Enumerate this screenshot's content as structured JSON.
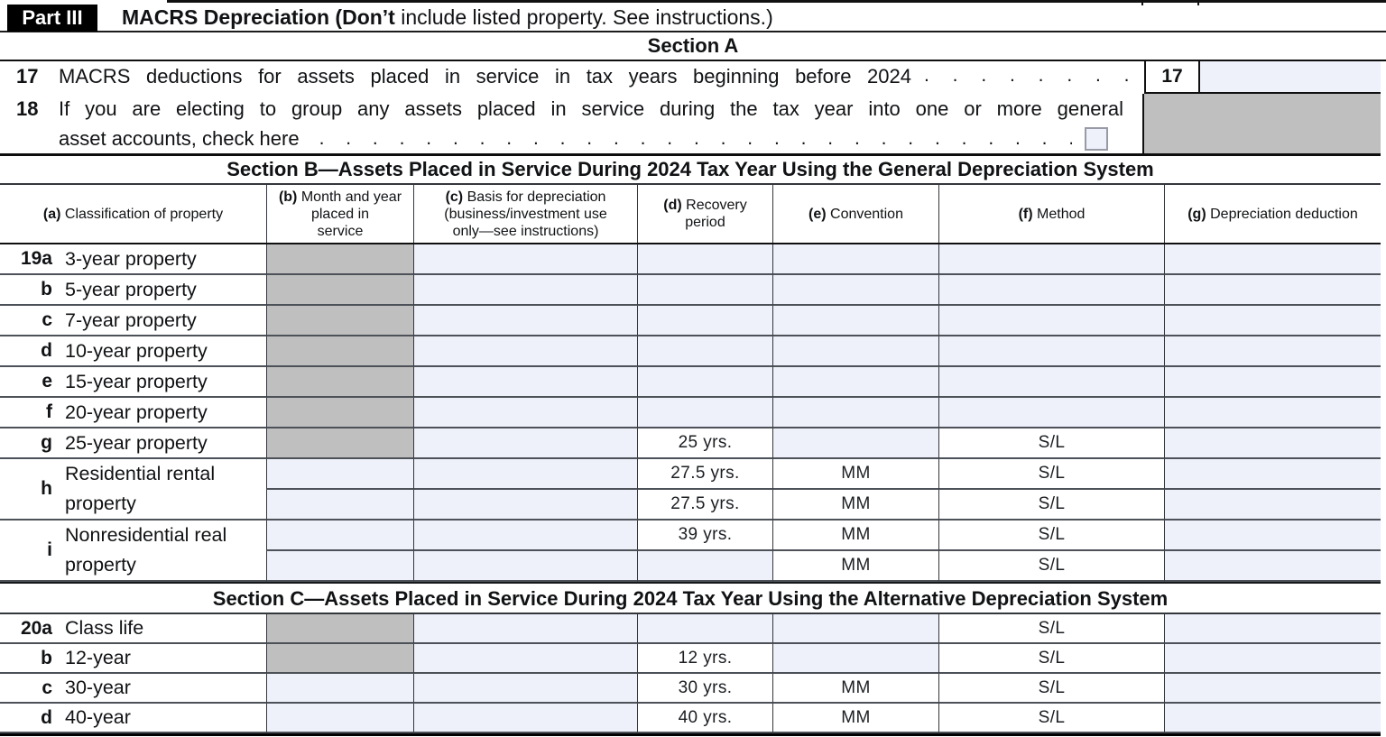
{
  "colors": {
    "input_fill": "#eef0fa",
    "disabled_fill": "#bfbfbf",
    "header_bar": "#000000"
  },
  "form": {
    "part_label": "Part III",
    "title_bold": "MACRS Depreciation (Don’t",
    "title_rest": " include listed property. See instructions.)"
  },
  "section_a": {
    "title": "Section A",
    "line17": {
      "number": "17",
      "text": "MACRS deductions for assets placed in service in tax years beginning before 2024",
      "dots": ". . . . . . . . . . . .",
      "box_label": "17",
      "amount_value": ""
    },
    "line18": {
      "number": "18",
      "line1": "If you are electing to group any assets placed in service during the tax year into one or more general",
      "line2": "asset accounts, check here",
      "dots": ". . . . . . . . . . . . . . . . . . . . . . . . . . . . . . . . . .",
      "checkbox_checked": false
    }
  },
  "section_b": {
    "title": "Section B—Assets Placed in Service During 2024 Tax Year Using the General Depreciation System",
    "columns": [
      {
        "letter": "(a)",
        "lines": [
          "Classification of property"
        ]
      },
      {
        "letter": "(b)",
        "lines": [
          "Month and year",
          "placed in",
          "service"
        ]
      },
      {
        "letter": "(c)",
        "lines": [
          "Basis for depreciation",
          "(business/investment use",
          "only—see instructions)"
        ]
      },
      {
        "letter": "(d)",
        "lines": [
          "Recovery",
          "period"
        ]
      },
      {
        "letter": "(e)",
        "lines": [
          "Convention"
        ]
      },
      {
        "letter": "(f)",
        "lines": [
          "Method"
        ]
      },
      {
        "letter": "(g)",
        "lines": [
          "Depreciation deduction"
        ]
      }
    ],
    "rows": [
      {
        "id": "19a",
        "label": "3-year property"
      },
      {
        "id": "b",
        "label": "5-year property"
      },
      {
        "id": "c",
        "label": "7-year property"
      },
      {
        "id": "d",
        "label": "10-year property"
      },
      {
        "id": "e",
        "label": "15-year property"
      },
      {
        "id": "f",
        "label": "20-year property"
      },
      {
        "id": "g",
        "label": "25-year property",
        "period": "25 yrs.",
        "method": "S/L"
      },
      {
        "id": "h",
        "label_line1": "Residential rental",
        "label_line2": "property",
        "sub": [
          {
            "period": "27.5 yrs.",
            "convention": "MM",
            "method": "S/L"
          },
          {
            "period": "27.5 yrs.",
            "convention": "MM",
            "method": "S/L"
          }
        ]
      },
      {
        "id": "i",
        "label_line1": "Nonresidential real",
        "label_line2": "property",
        "sub": [
          {
            "period": "39 yrs.",
            "convention": "MM",
            "method": "S/L"
          },
          {
            "period": "",
            "convention": "MM",
            "method": "S/L"
          }
        ]
      }
    ]
  },
  "section_c": {
    "title": "Section C—Assets Placed in Service During 2024 Tax Year Using the Alternative Depreciation System",
    "rows": [
      {
        "id": "20a",
        "label": "Class life",
        "method": "S/L"
      },
      {
        "id": "b",
        "label": "12-year",
        "period": "12 yrs.",
        "method": "S/L"
      },
      {
        "id": "c",
        "label": "30-year",
        "period": "30 yrs.",
        "convention": "MM",
        "method": "S/L"
      },
      {
        "id": "d",
        "label": "40-year",
        "period": "40 yrs.",
        "convention": "MM",
        "method": "S/L"
      }
    ]
  }
}
